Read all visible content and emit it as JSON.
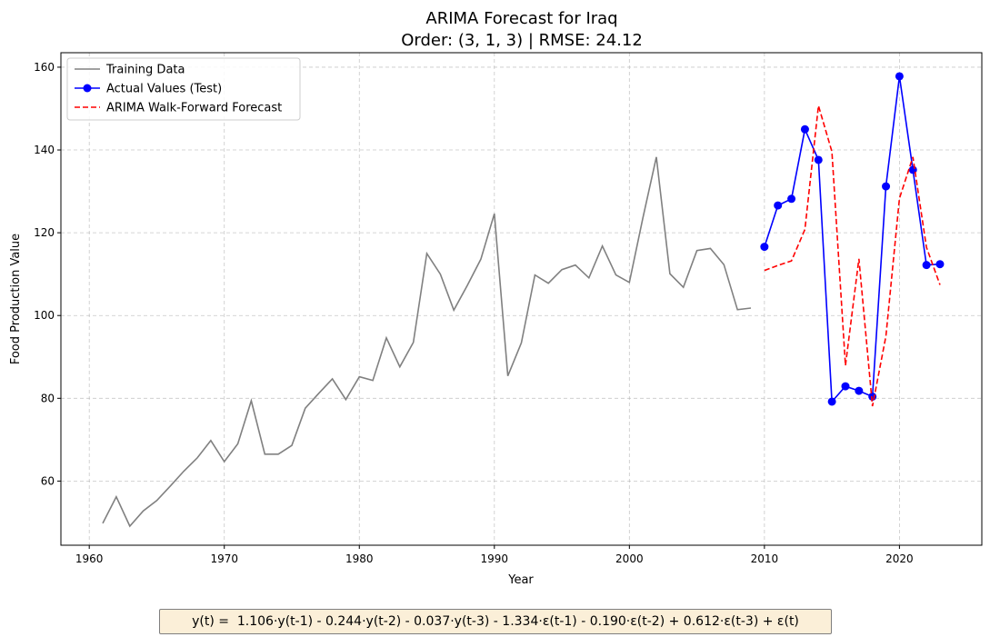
{
  "chart_data": {
    "type": "line",
    "title_line1": "ARIMA Forecast for Iraq",
    "title_line2": "Order: (3, 1, 3) | RMSE: 24.12",
    "xlabel": "Year",
    "ylabel": "Food Production Value",
    "xlim": [
      1957.9,
      2026.1
    ],
    "ylim": [
      44.5,
      163.5
    ],
    "xticks": [
      1960,
      1970,
      1980,
      1990,
      2000,
      2010,
      2020
    ],
    "yticks": [
      60,
      80,
      100,
      120,
      140,
      160
    ],
    "grid": true,
    "legend_position": "top-left",
    "series": [
      {
        "name": "Training Data",
        "color": "#808080",
        "style": "solid",
        "markers": false,
        "x": [
          1961,
          1962,
          1963,
          1964,
          1965,
          1966,
          1967,
          1968,
          1969,
          1970,
          1971,
          1972,
          1973,
          1974,
          1975,
          1976,
          1977,
          1978,
          1979,
          1980,
          1981,
          1982,
          1983,
          1984,
          1985,
          1986,
          1987,
          1988,
          1989,
          1990,
          1991,
          1992,
          1993,
          1994,
          1995,
          1996,
          1997,
          1998,
          1999,
          2000,
          2001,
          2002,
          2003,
          2004,
          2005,
          2006,
          2007,
          2008,
          2009
        ],
        "y": [
          49.8,
          56.2,
          49.1,
          52.8,
          55.3,
          58.8,
          62.4,
          65.6,
          69.8,
          64.7,
          69.0,
          79.4,
          66.5,
          66.5,
          68.6,
          77.6,
          81.2,
          84.7,
          79.7,
          85.2,
          84.3,
          94.6,
          87.6,
          93.5,
          115.0,
          110.0,
          101.3,
          107.3,
          113.6,
          124.6,
          85.4,
          93.4,
          109.8,
          107.8,
          111.1,
          112.2,
          109.1,
          116.8,
          109.8,
          108.0,
          123.6,
          138.3,
          110.1,
          106.8,
          115.7,
          116.2,
          112.3,
          101.4,
          101.8
        ]
      },
      {
        "name": "Actual Values (Test)",
        "color": "#0000ff",
        "style": "solid",
        "markers": true,
        "x": [
          2010,
          2011,
          2012,
          2013,
          2014,
          2015,
          2016,
          2017,
          2018,
          2019,
          2020,
          2021,
          2022,
          2023
        ],
        "y": [
          116.6,
          126.6,
          128.2,
          145.0,
          137.6,
          79.2,
          82.9,
          81.8,
          80.4,
          131.2,
          157.8,
          135.2,
          112.2,
          112.4
        ]
      },
      {
        "name": "ARIMA Walk-Forward Forecast",
        "color": "#ff0000",
        "style": "dashed",
        "markers": false,
        "x": [
          2010,
          2011,
          2012,
          2013,
          2014,
          2015,
          2016,
          2017,
          2018,
          2019,
          2020,
          2021,
          2022,
          2023
        ],
        "y": [
          110.9,
          112.1,
          113.2,
          120.8,
          150.7,
          139.6,
          87.9,
          113.7,
          78.1,
          95.0,
          128.3,
          138.3,
          116.5,
          107.4
        ]
      }
    ]
  },
  "equation": "y(t) =  1.106·y(t-1) - 0.244·y(t-2) - 0.037·y(t-3) - 1.334·ε(t-1) - 0.190·ε(t-2) + 0.612·ε(t-3) + ε(t)"
}
